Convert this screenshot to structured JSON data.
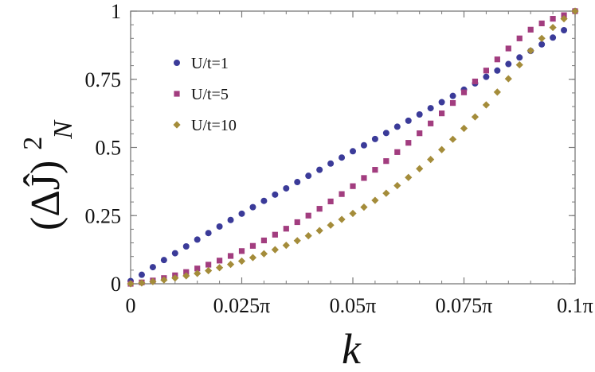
{
  "chart_data": {
    "type": "scatter",
    "xlabel": "k",
    "ylabel_parts": {
      "base": "(ΔĴ)",
      "superscript": "2",
      "subscript": "N"
    },
    "x_tick_labels": [
      "0",
      "0.025π",
      "0.05π",
      "0.075π",
      "0.1π"
    ],
    "x_tick_values": [
      0,
      0.025,
      0.05,
      0.075,
      0.1
    ],
    "y_tick_labels": [
      "0",
      "0.25",
      "0.5",
      "0.75",
      "1"
    ],
    "y_tick_values": [
      0,
      0.25,
      0.5,
      0.75,
      1
    ],
    "xlim": [
      0,
      0.1
    ],
    "ylim": [
      0,
      1
    ],
    "legend_position": "top-left",
    "grid": false,
    "series": [
      {
        "name": "U/t=1",
        "marker": "circle",
        "color": "#3b3b99",
        "x": [
          0,
          0.0025,
          0.005,
          0.0075,
          0.01,
          0.0125,
          0.015,
          0.0175,
          0.02,
          0.0225,
          0.025,
          0.0275,
          0.03,
          0.0325,
          0.035,
          0.0375,
          0.04,
          0.0425,
          0.045,
          0.0475,
          0.05,
          0.0525,
          0.055,
          0.0575,
          0.06,
          0.0625,
          0.065,
          0.0675,
          0.07,
          0.0725,
          0.075,
          0.0775,
          0.08,
          0.0825,
          0.085,
          0.0875,
          0.09,
          0.0925,
          0.095,
          0.0975,
          0.1
        ],
        "values": [
          0.01,
          0.033,
          0.061,
          0.087,
          0.112,
          0.137,
          0.162,
          0.186,
          0.21,
          0.234,
          0.257,
          0.281,
          0.304,
          0.327,
          0.35,
          0.373,
          0.396,
          0.418,
          0.441,
          0.463,
          0.486,
          0.508,
          0.531,
          0.553,
          0.576,
          0.598,
          0.621,
          0.644,
          0.666,
          0.689,
          0.712,
          0.735,
          0.759,
          0.782,
          0.806,
          0.83,
          0.854,
          0.878,
          0.903,
          0.93,
          1.0
        ]
      },
      {
        "name": "U/t=5",
        "marker": "square",
        "color": "#a23d7f",
        "x": [
          0,
          0.0025,
          0.005,
          0.0075,
          0.01,
          0.0125,
          0.015,
          0.0175,
          0.02,
          0.0225,
          0.025,
          0.0275,
          0.03,
          0.0325,
          0.035,
          0.0375,
          0.04,
          0.0425,
          0.045,
          0.0475,
          0.05,
          0.0525,
          0.055,
          0.0575,
          0.06,
          0.0625,
          0.065,
          0.0675,
          0.07,
          0.0725,
          0.075,
          0.0775,
          0.08,
          0.0825,
          0.085,
          0.0875,
          0.09,
          0.0925,
          0.095,
          0.0975,
          0.1
        ],
        "values": [
          0.0,
          0.005,
          0.012,
          0.021,
          0.031,
          0.043,
          0.056,
          0.07,
          0.085,
          0.102,
          0.12,
          0.139,
          0.159,
          0.18,
          0.202,
          0.226,
          0.25,
          0.275,
          0.302,
          0.329,
          0.358,
          0.388,
          0.418,
          0.45,
          0.483,
          0.517,
          0.552,
          0.588,
          0.625,
          0.663,
          0.702,
          0.742,
          0.782,
          0.823,
          0.863,
          0.9,
          0.932,
          0.955,
          0.972,
          0.985,
          1.0
        ]
      },
      {
        "name": "U/t=10",
        "marker": "diamond",
        "color": "#a48c3a",
        "x": [
          0,
          0.0025,
          0.005,
          0.0075,
          0.01,
          0.0125,
          0.015,
          0.0175,
          0.02,
          0.0225,
          0.025,
          0.0275,
          0.03,
          0.0325,
          0.035,
          0.0375,
          0.04,
          0.0425,
          0.045,
          0.0475,
          0.05,
          0.0525,
          0.055,
          0.0575,
          0.06,
          0.0625,
          0.065,
          0.0675,
          0.07,
          0.0725,
          0.075,
          0.0775,
          0.08,
          0.0825,
          0.085,
          0.0875,
          0.09,
          0.0925,
          0.095,
          0.0975,
          0.1
        ],
        "values": [
          0.0,
          0.003,
          0.008,
          0.014,
          0.021,
          0.029,
          0.038,
          0.048,
          0.059,
          0.071,
          0.083,
          0.096,
          0.11,
          0.125,
          0.141,
          0.158,
          0.176,
          0.195,
          0.215,
          0.236,
          0.258,
          0.281,
          0.306,
          0.332,
          0.36,
          0.39,
          0.422,
          0.456,
          0.492,
          0.53,
          0.57,
          0.612,
          0.656,
          0.703,
          0.752,
          0.803,
          0.855,
          0.9,
          0.94,
          0.972,
          1.0
        ]
      }
    ]
  }
}
